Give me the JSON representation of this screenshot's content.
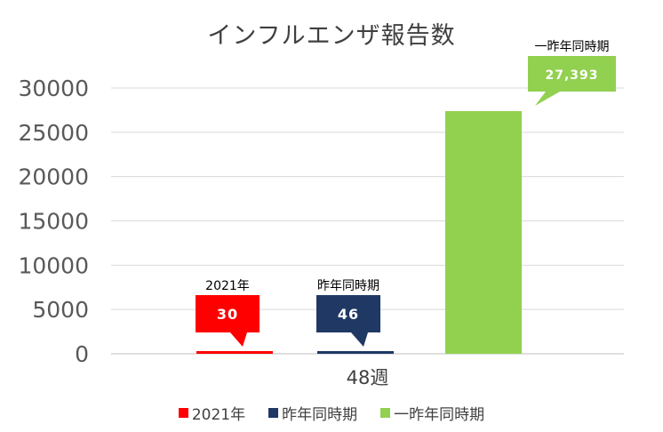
{
  "chart_data": {
    "type": "bar",
    "title": "インフルエンザ報告数",
    "categories": [
      "48週"
    ],
    "xlabel": "",
    "ylabel": "",
    "ylim": [
      0,
      30000
    ],
    "yticks": [
      "0",
      "5000",
      "10000",
      "15000",
      "20000",
      "25000",
      "30000"
    ],
    "grid": true,
    "legend_position": "bottom",
    "series": [
      {
        "name": "2021年",
        "values": [
          30
        ],
        "color": "#ff0000",
        "data_label": "30",
        "callout_title": "2021年"
      },
      {
        "name": "昨年同時期",
        "values": [
          46
        ],
        "color": "#1f3864",
        "data_label": "46",
        "callout_title": "昨年同時期"
      },
      {
        "name": "一昨年同時期",
        "values": [
          27393
        ],
        "color": "#92d050",
        "data_label": "27,393",
        "callout_title": "一昨年同時期"
      }
    ]
  }
}
